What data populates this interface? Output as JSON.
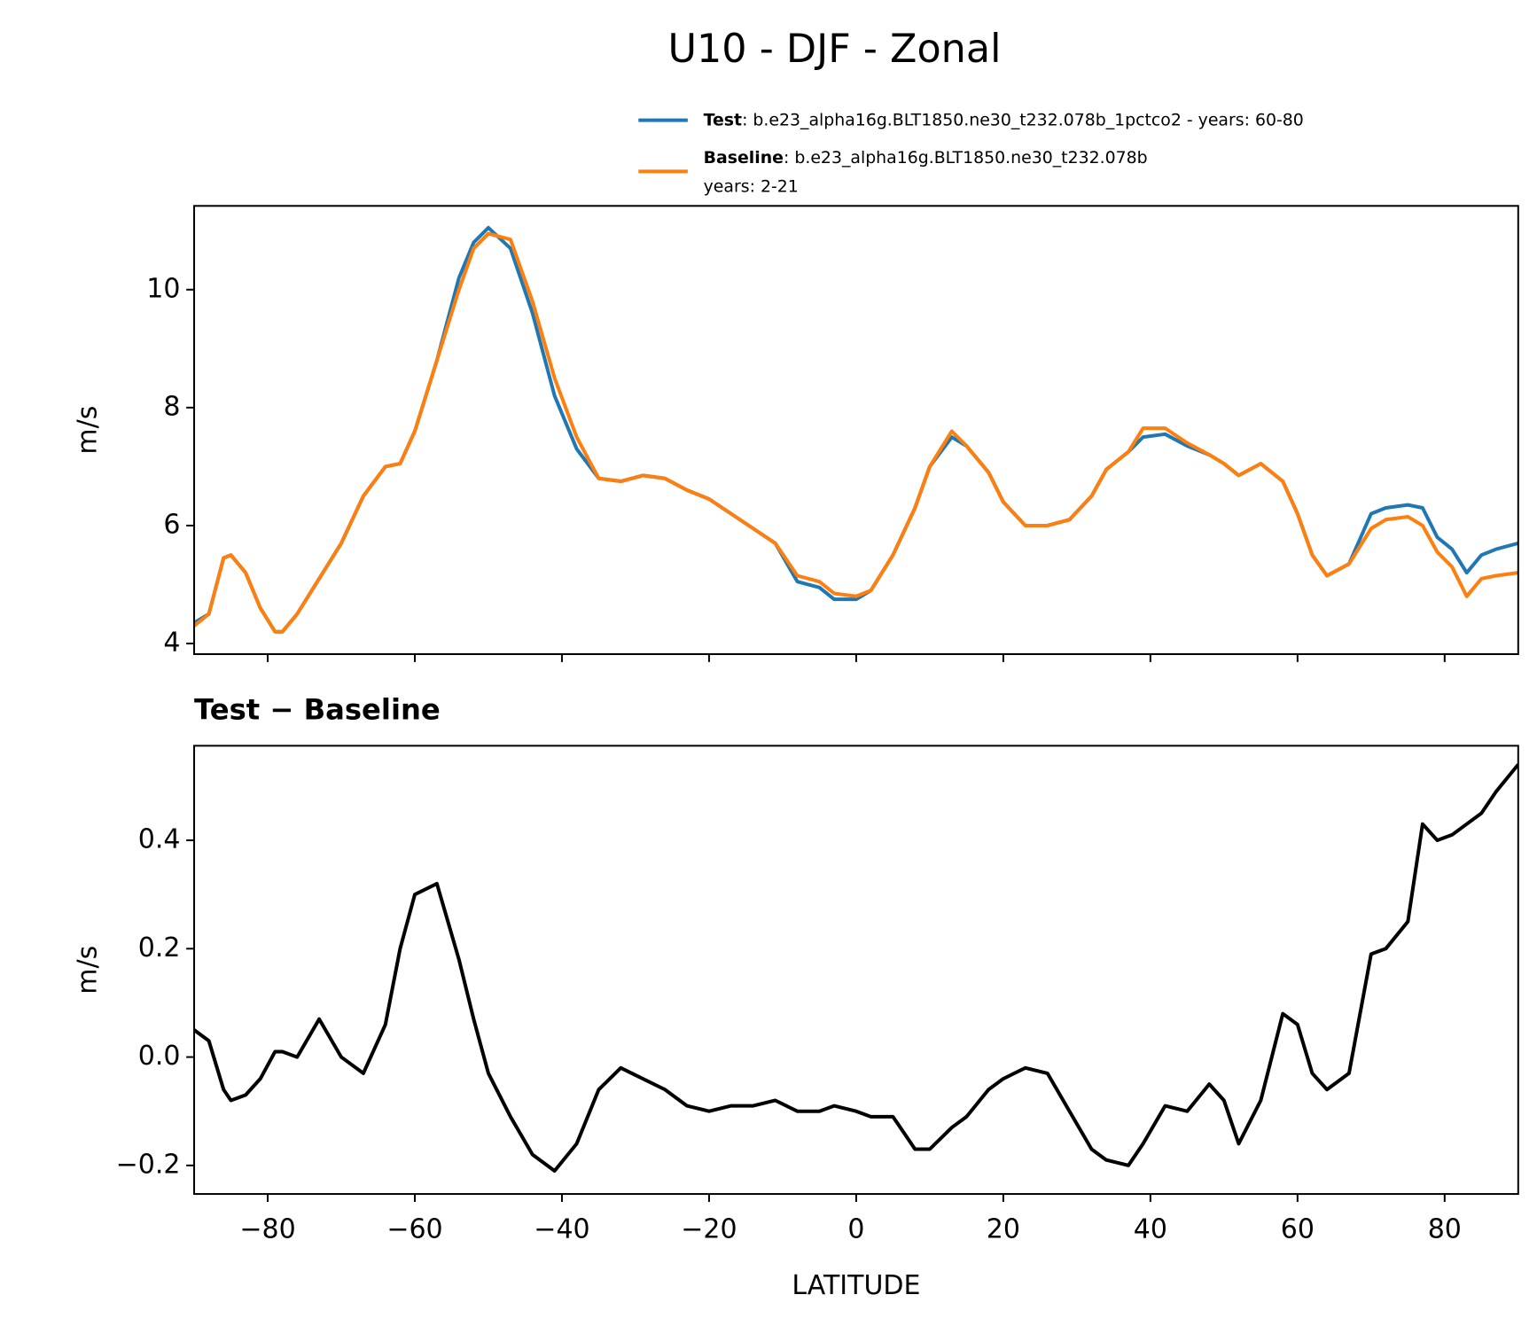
{
  "chart_data": [
    {
      "type": "line",
      "title": "U10 - DJF - Zonal",
      "ylabel": "m/s",
      "x": [
        -90,
        -88,
        -86,
        -85,
        -83,
        -81,
        -79,
        -78,
        -76,
        -73,
        -70,
        -67,
        -64,
        -62,
        -60,
        -57,
        -54,
        -52,
        -50,
        -47,
        -44,
        -41,
        -38,
        -35,
        -32,
        -29,
        -26,
        -23,
        -20,
        -17,
        -14,
        -11,
        -8,
        -5,
        -3,
        0,
        2,
        5,
        8,
        10,
        13,
        15,
        18,
        20,
        23,
        26,
        29,
        32,
        34,
        37,
        39,
        42,
        45,
        48,
        50,
        52,
        55,
        58,
        60,
        62,
        64,
        67,
        70,
        72,
        75,
        77,
        79,
        81,
        83,
        85,
        87,
        90
      ],
      "series": [
        {
          "name": "Test",
          "description": [
            ": b.e23_alpha16g.BLT1850.ne30_t232.078b_1pctco2 - years: 60-80"
          ],
          "color": "#1f77b4",
          "values": [
            4.35,
            4.5,
            5.45,
            5.5,
            5.2,
            4.6,
            4.2,
            4.2,
            4.5,
            5.1,
            5.7,
            6.5,
            7.0,
            7.05,
            7.6,
            8.8,
            10.2,
            10.8,
            11.05,
            10.7,
            9.6,
            8.2,
            7.3,
            6.8,
            6.75,
            6.85,
            6.8,
            6.6,
            6.45,
            6.2,
            5.95,
            5.7,
            5.05,
            4.95,
            4.75,
            4.75,
            4.9,
            5.5,
            6.3,
            7.0,
            7.5,
            7.35,
            6.9,
            6.4,
            6.0,
            6.0,
            6.1,
            6.5,
            6.95,
            7.25,
            7.5,
            7.55,
            7.35,
            7.2,
            7.05,
            6.85,
            7.05,
            6.75,
            6.2,
            5.5,
            5.15,
            5.35,
            6.2,
            6.3,
            6.35,
            6.3,
            5.8,
            5.6,
            5.2,
            5.5,
            5.6,
            5.7
          ]
        },
        {
          "name": "Baseline",
          "description": [
            ": b.e23_alpha16g.BLT1850.ne30_t232.078b",
            "years: 2-21"
          ],
          "color": "#ff7f0e",
          "values": [
            4.3,
            4.5,
            5.45,
            5.5,
            5.2,
            4.6,
            4.2,
            4.2,
            4.5,
            5.1,
            5.7,
            6.5,
            7.0,
            7.05,
            7.6,
            8.8,
            10.0,
            10.7,
            10.95,
            10.85,
            9.8,
            8.5,
            7.5,
            6.8,
            6.75,
            6.85,
            6.8,
            6.6,
            6.45,
            6.2,
            5.95,
            5.7,
            5.15,
            5.05,
            4.85,
            4.8,
            4.9,
            5.5,
            6.3,
            7.0,
            7.6,
            7.35,
            6.9,
            6.4,
            6.0,
            6.0,
            6.1,
            6.5,
            6.95,
            7.25,
            7.65,
            7.65,
            7.4,
            7.2,
            7.05,
            6.85,
            7.05,
            6.75,
            6.2,
            5.5,
            5.15,
            5.35,
            5.95,
            6.1,
            6.15,
            6.0,
            5.55,
            5.3,
            4.8,
            5.1,
            5.15,
            5.2
          ]
        }
      ],
      "xlim": [
        -90,
        90
      ],
      "xticks": [
        -80,
        -60,
        -40,
        -20,
        0,
        20,
        40,
        60,
        80
      ],
      "ylim": [
        3.82,
        11.42
      ],
      "yticks": [
        4,
        6,
        8,
        10
      ]
    },
    {
      "type": "line",
      "title": "Test − Baseline",
      "ylabel": "m/s",
      "xlabel": "LATITUDE",
      "x": [
        -90,
        -88,
        -86,
        -85,
        -83,
        -81,
        -79,
        -78,
        -76,
        -73,
        -70,
        -67,
        -64,
        -62,
        -60,
        -57,
        -54,
        -52,
        -50,
        -47,
        -44,
        -41,
        -38,
        -35,
        -32,
        -29,
        -26,
        -23,
        -20,
        -17,
        -14,
        -11,
        -8,
        -5,
        -3,
        0,
        2,
        5,
        8,
        10,
        13,
        15,
        18,
        20,
        23,
        26,
        29,
        32,
        34,
        37,
        39,
        42,
        45,
        48,
        50,
        52,
        55,
        58,
        60,
        62,
        64,
        67,
        70,
        72,
        75,
        77,
        79,
        81,
        83,
        85,
        87,
        90
      ],
      "series": [
        {
          "name": "Test − Baseline",
          "color": "#000000",
          "values": [
            0.05,
            0.03,
            -0.06,
            -0.08,
            -0.07,
            -0.04,
            0.01,
            0.01,
            0.0,
            0.07,
            0.0,
            -0.03,
            0.06,
            0.2,
            0.3,
            0.32,
            0.18,
            0.07,
            -0.03,
            -0.11,
            -0.18,
            -0.21,
            -0.16,
            -0.06,
            -0.02,
            -0.04,
            -0.06,
            -0.09,
            -0.1,
            -0.09,
            -0.09,
            -0.08,
            -0.1,
            -0.1,
            -0.09,
            -0.1,
            -0.11,
            -0.11,
            -0.17,
            -0.17,
            -0.13,
            -0.11,
            -0.06,
            -0.04,
            -0.02,
            -0.03,
            -0.1,
            -0.17,
            -0.19,
            -0.2,
            -0.16,
            -0.09,
            -0.1,
            -0.05,
            -0.08,
            -0.16,
            -0.08,
            0.08,
            0.06,
            -0.03,
            -0.06,
            -0.03,
            0.19,
            0.2,
            0.25,
            0.43,
            0.4,
            0.41,
            0.43,
            0.45,
            0.49,
            0.54
          ]
        }
      ],
      "xlim": [
        -90,
        90
      ],
      "xticks": [
        {
          "value": -80,
          "label": "−80"
        },
        {
          "value": -60,
          "label": "−60"
        },
        {
          "value": -40,
          "label": "−40"
        },
        {
          "value": -20,
          "label": "−20"
        },
        0,
        20,
        40,
        60,
        80
      ],
      "ylim": [
        -0.2527,
        0.5745
      ],
      "yticks": [
        {
          "value": -0.2,
          "label": "−0.2"
        },
        {
          "value": 0,
          "label": "0.0"
        },
        0.2,
        0.4
      ]
    }
  ]
}
